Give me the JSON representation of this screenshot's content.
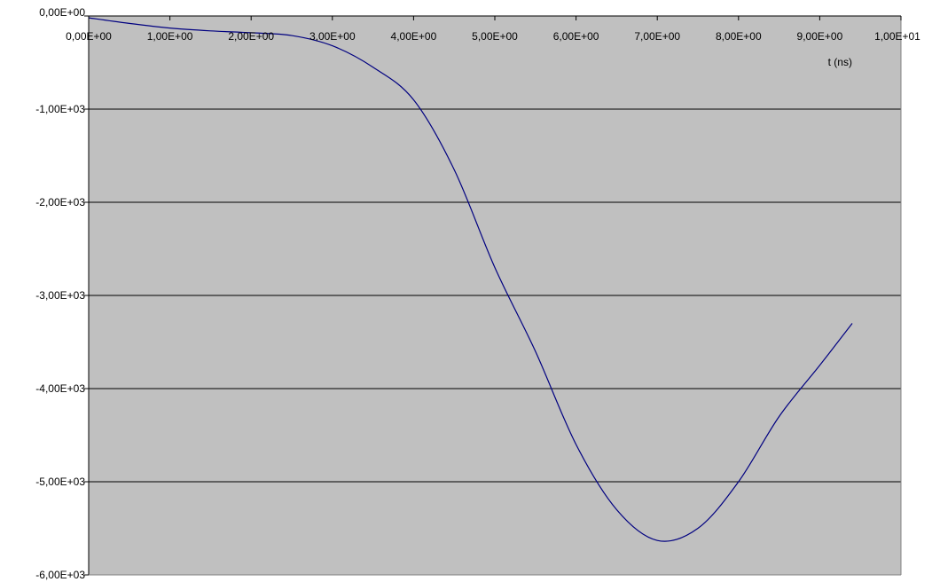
{
  "chart_data": {
    "type": "line",
    "title": "",
    "xlabel": "t (ns)",
    "ylabel": "",
    "xlim": [
      0,
      10
    ],
    "ylim": [
      -6000,
      0
    ],
    "x_ticks": [
      0,
      1,
      2,
      3,
      4,
      5,
      6,
      7,
      8,
      9,
      10
    ],
    "x_tick_labels": [
      "0,00E+00",
      "1,00E+00",
      "2,00E+00",
      "3,00E+00",
      "4,00E+00",
      "5,00E+00",
      "6,00E+00",
      "7,00E+00",
      "8,00E+00",
      "9,00E+00",
      "1,00E+01"
    ],
    "y_ticks": [
      0,
      -1000,
      -2000,
      -3000,
      -4000,
      -5000,
      -6000
    ],
    "y_tick_labels": [
      "0,00E+00",
      "-1,00E+03",
      "-2,00E+03",
      "-3,00E+03",
      "-4,00E+03",
      "-5,00E+03",
      "-6,00E+03"
    ],
    "grid": "horizontal",
    "legend": "none",
    "colors": {
      "plot_bg": "#c0c0c0",
      "line": "#000080",
      "grid": "#000000"
    },
    "series": [
      {
        "x": [
          0.0,
          0.5,
          1.0,
          1.5,
          2.0,
          2.5,
          3.0,
          3.5,
          4.0,
          4.5,
          5.0,
          5.5,
          6.0,
          6.5,
          7.0,
          7.5,
          8.0,
          8.5,
          9.0,
          9.4
        ],
        "values": [
          -20,
          -80,
          -130,
          -160,
          -180,
          -210,
          -320,
          -550,
          -900,
          -1650,
          -2700,
          -3600,
          -4600,
          -5300,
          -5630,
          -5500,
          -5000,
          -4300,
          -3750,
          -3300
        ]
      }
    ]
  }
}
